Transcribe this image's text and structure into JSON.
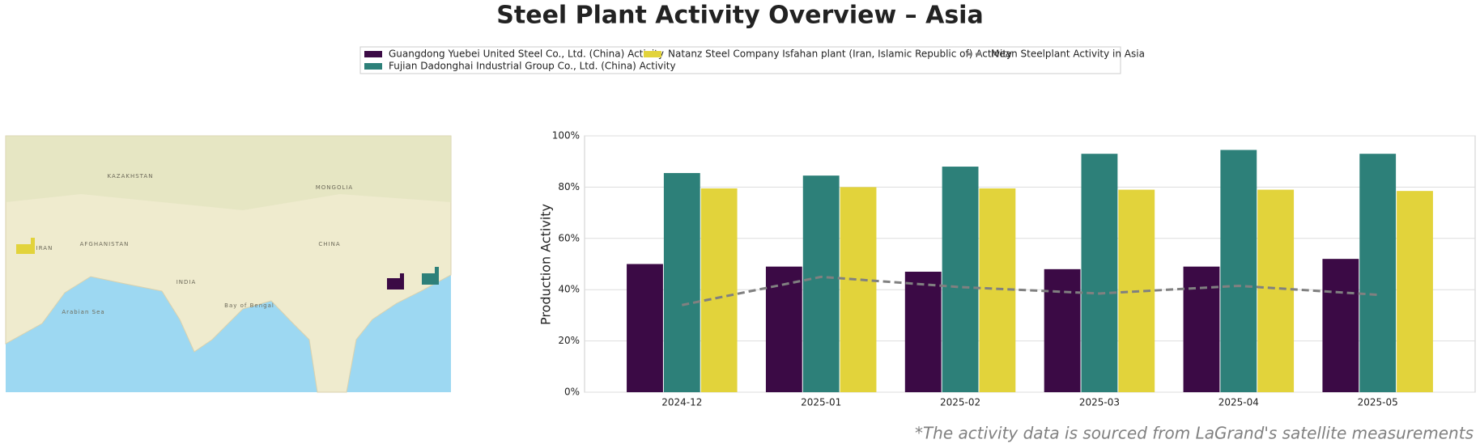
{
  "chart_data": {
    "type": "bar",
    "title": "Steel Plant Activity Overview – Asia",
    "ylabel": "Production Activity",
    "footnote": "*The activity data is sourced from LaGrand's satellite measurements",
    "categories": [
      "2024-12",
      "2025-01",
      "2025-02",
      "2025-03",
      "2025-04",
      "2025-05"
    ],
    "series": [
      {
        "name": "Guangdong Yuebei United Steel Co., Ltd. (China) Activity",
        "color": "#3b0a45",
        "values": [
          50,
          49,
          47,
          48,
          49,
          52
        ]
      },
      {
        "name": "Fujian Dadonghai Industrial Group Co., Ltd. (China) Activity",
        "color": "#2d8079",
        "values": [
          85.5,
          84.5,
          88,
          93,
          94.5,
          93
        ]
      },
      {
        "name": "Natanz Steel Company Isfahan plant (Iran, Islamic Republic of) Activity",
        "color": "#e2d33b",
        "values": [
          79.5,
          80,
          79.5,
          79,
          79,
          78.5
        ]
      },
      {
        "name": "Mean Steelplant Activity in Asia",
        "color": "#808080",
        "type": "line",
        "dashed": true,
        "values": [
          34,
          45,
          41,
          38.5,
          41.5,
          38
        ]
      }
    ],
    "ylim": [
      0,
      100
    ],
    "yticks": [
      {
        "value": 0,
        "label": "0%"
      },
      {
        "value": 20,
        "label": "20%"
      },
      {
        "value": 40,
        "label": "40%"
      },
      {
        "value": 60,
        "label": "60%"
      },
      {
        "value": 80,
        "label": "80%"
      },
      {
        "value": 100,
        "label": "100%"
      }
    ],
    "grid": true,
    "legend": "top"
  },
  "map": {
    "labels": [
      "KAZAKHSTAN",
      "MONGOLIA",
      "CHINA",
      "INDIA",
      "IRAN",
      "AFGHANISTAN",
      "Arabian Sea",
      "Bay of Bengal"
    ]
  }
}
